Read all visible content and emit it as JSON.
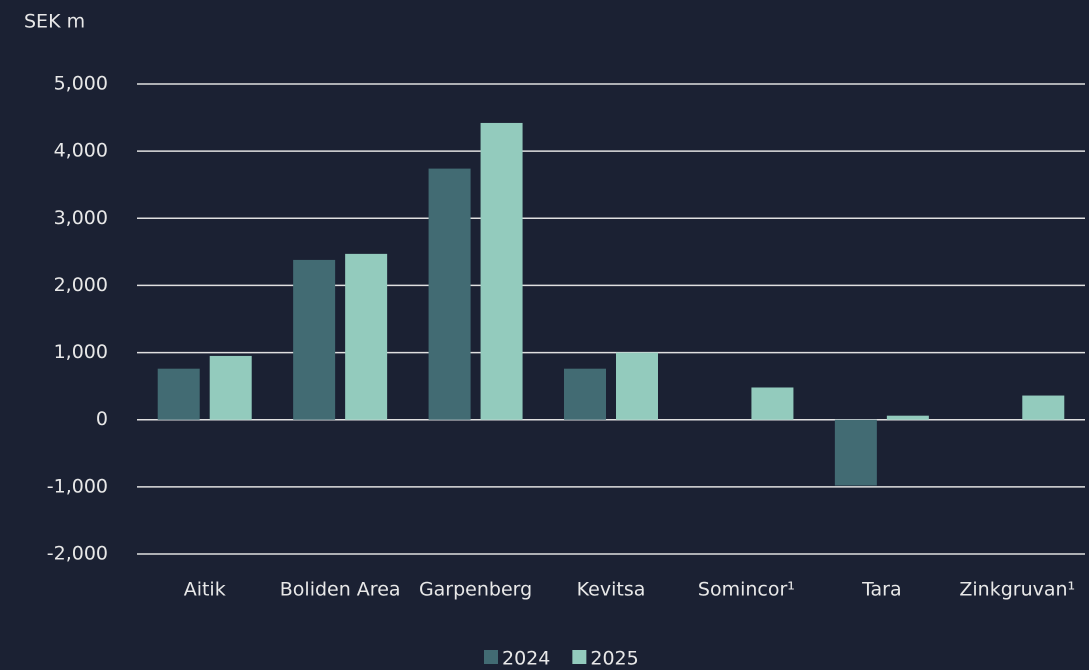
{
  "chart_data": {
    "type": "bar",
    "y_label": "SEK m",
    "categories": [
      "Aitik",
      "Boliden Area",
      "Garpenberg",
      "Kevitsa",
      "Somincor¹",
      "Tara",
      "Zinkgruvan¹"
    ],
    "series": [
      {
        "name": "2024",
        "color": "#426b73",
        "values": [
          760,
          2380,
          3740,
          760,
          null,
          -980,
          null
        ]
      },
      {
        "name": "2025",
        "color": "#93cbbd",
        "values": [
          950,
          2470,
          4420,
          1000,
          480,
          60,
          360
        ]
      }
    ],
    "ylim": [
      -2000,
      5000
    ],
    "yticks": [
      {
        "value": -2000,
        "label": "-2,000"
      },
      {
        "value": -1000,
        "label": "-1,000"
      },
      0,
      {
        "value": 1000,
        "label": "1,000"
      },
      {
        "value": 2000,
        "label": "2,000"
      },
      {
        "value": 3000,
        "label": "3,000"
      },
      {
        "value": 4000,
        "label": "4,000"
      },
      {
        "value": 5000,
        "label": "5,000"
      }
    ],
    "grid": true,
    "legend": "bottom"
  }
}
